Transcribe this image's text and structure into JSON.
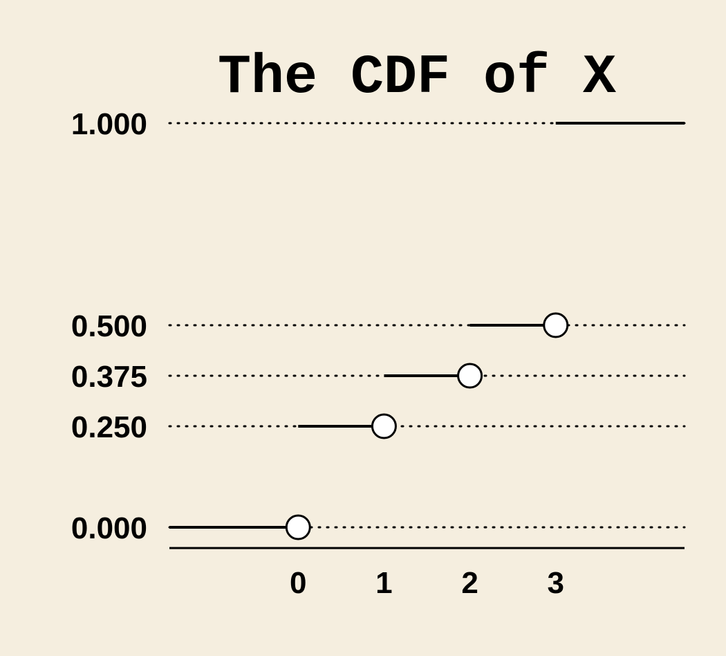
{
  "chart_data": {
    "type": "line",
    "title": "The CDF of X",
    "xlabel": "",
    "ylabel": "",
    "x_ticks": [
      0,
      1,
      2,
      3
    ],
    "y_ticks": [
      0.0,
      0.25,
      0.375,
      0.5,
      1.0
    ],
    "y_tick_labels": [
      "0.000",
      "0.250",
      "0.375",
      "0.500",
      "1.000"
    ],
    "x_tick_labels": [
      "0",
      "1",
      "2",
      "3"
    ],
    "xlim": [
      -1.5,
      4.5
    ],
    "ylim": [
      0,
      1
    ],
    "segments": [
      {
        "x_start": -1.5,
        "x_end": 0,
        "y": 0.0
      },
      {
        "x_start": 0,
        "x_end": 1,
        "y": 0.25
      },
      {
        "x_start": 1,
        "x_end": 2,
        "y": 0.375
      },
      {
        "x_start": 2,
        "x_end": 3,
        "y": 0.5
      },
      {
        "x_start": 3,
        "x_end": 4.5,
        "y": 1.0
      }
    ],
    "open_points": [
      {
        "x": 0,
        "y": 0.0
      },
      {
        "x": 1,
        "y": 0.25
      },
      {
        "x": 2,
        "y": 0.375
      },
      {
        "x": 3,
        "y": 0.5
      }
    ],
    "reference_lines": "dotted",
    "grid": false,
    "legend": "none"
  },
  "colors": {
    "background": "#f5eedf",
    "ink": "#000000",
    "marker_fill": "#ffffff"
  }
}
